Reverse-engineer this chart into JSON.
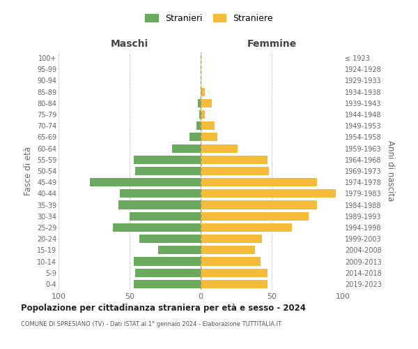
{
  "age_groups": [
    "0-4",
    "5-9",
    "10-14",
    "15-19",
    "20-24",
    "25-29",
    "30-34",
    "35-39",
    "40-44",
    "45-49",
    "50-54",
    "55-59",
    "60-64",
    "65-69",
    "70-74",
    "75-79",
    "80-84",
    "85-89",
    "90-94",
    "95-99",
    "100+"
  ],
  "birth_years": [
    "2019-2023",
    "2014-2018",
    "2009-2013",
    "2004-2008",
    "1999-2003",
    "1994-1998",
    "1989-1993",
    "1984-1988",
    "1979-1983",
    "1974-1978",
    "1969-1973",
    "1964-1968",
    "1959-1963",
    "1954-1958",
    "1949-1953",
    "1944-1948",
    "1939-1943",
    "1934-1938",
    "1929-1933",
    "1924-1928",
    "≤ 1923"
  ],
  "maschi": [
    47,
    46,
    47,
    30,
    43,
    62,
    50,
    58,
    57,
    78,
    46,
    47,
    20,
    8,
    3,
    1,
    2,
    0,
    0,
    0,
    0
  ],
  "femmine": [
    47,
    47,
    42,
    38,
    43,
    64,
    76,
    82,
    95,
    82,
    48,
    47,
    26,
    12,
    10,
    3,
    8,
    3,
    0,
    0,
    0
  ],
  "maschi_color": "#6aaa5f",
  "femmine_color": "#f5bc3a",
  "bg_color": "#ffffff",
  "grid_color": "#cccccc",
  "xlim": 100,
  "title_main": "Popolazione per cittadinanza straniera per età e sesso - 2024",
  "title_sub": "COMUNE DI SPRESIANO (TV) - Dati ISTAT al 1° gennaio 2024 - Elaborazione TUTTITALIA.IT",
  "xlabel_left": "Maschi",
  "xlabel_right": "Femmine",
  "ylabel_left": "Fasce di età",
  "ylabel_right": "Anni di nascita",
  "legend_maschi": "Stranieri",
  "legend_femmine": "Straniere"
}
